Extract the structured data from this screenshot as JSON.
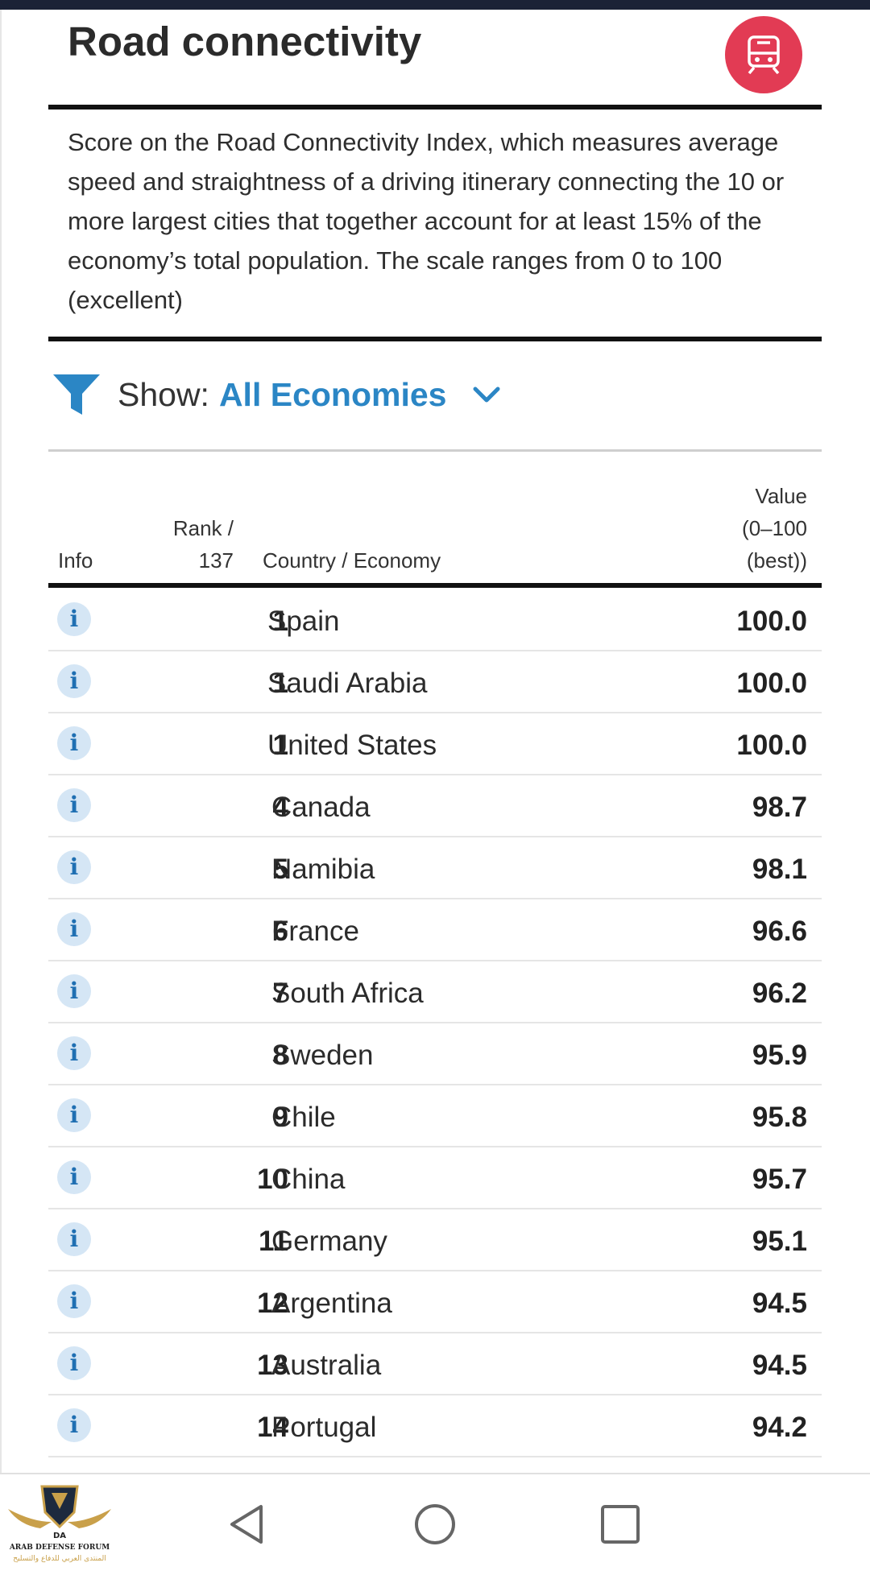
{
  "header": {
    "title": "Road connectivity",
    "icon": "train-icon",
    "accent": "#e23b54"
  },
  "description": "Score on the Road Connectivity Index, which measures average speed and straightness of a driving itinerary connecting the 10 or more largest cities that together account for at least 15% of the economy’s total population. The scale ranges from 0 to 100 (excellent)",
  "filter": {
    "label": "Show:",
    "value": "All Economies",
    "value_color": "#2b86c5"
  },
  "table": {
    "columns": {
      "info": "Info",
      "rank_line1": "Rank /",
      "rank_line2": "137",
      "country": "Country / Economy",
      "value_line1": "Value",
      "value_line2": "(0–100",
      "value_line3": "(best))"
    },
    "rows": [
      {
        "rank": "1",
        "country": "Spain",
        "value": "100.0"
      },
      {
        "rank": "1",
        "country": "Saudi Arabia",
        "value": "100.0"
      },
      {
        "rank": "1",
        "country": "United States",
        "value": "100.0"
      },
      {
        "rank": "4",
        "country": "Canada",
        "value": "98.7"
      },
      {
        "rank": "5",
        "country": "Namibia",
        "value": "98.1"
      },
      {
        "rank": "6",
        "country": "France",
        "value": "96.6"
      },
      {
        "rank": "7",
        "country": "South Africa",
        "value": "96.2"
      },
      {
        "rank": "8",
        "country": "Sweden",
        "value": "95.9"
      },
      {
        "rank": "9",
        "country": "Chile",
        "value": "95.8"
      },
      {
        "rank": "10",
        "country": "China",
        "value": "95.7"
      },
      {
        "rank": "11",
        "country": "Germany",
        "value": "95.1"
      },
      {
        "rank": "12",
        "country": "Argentina",
        "value": "94.5"
      },
      {
        "rank": "13",
        "country": "Australia",
        "value": "94.5"
      },
      {
        "rank": "14",
        "country": "Portugal",
        "value": "94.2"
      }
    ]
  },
  "watermark": {
    "line1": "DA",
    "line2": "ARAB DEFENSE FORUM",
    "line3": "المنتدى العربي للدفاع والتسليح"
  }
}
